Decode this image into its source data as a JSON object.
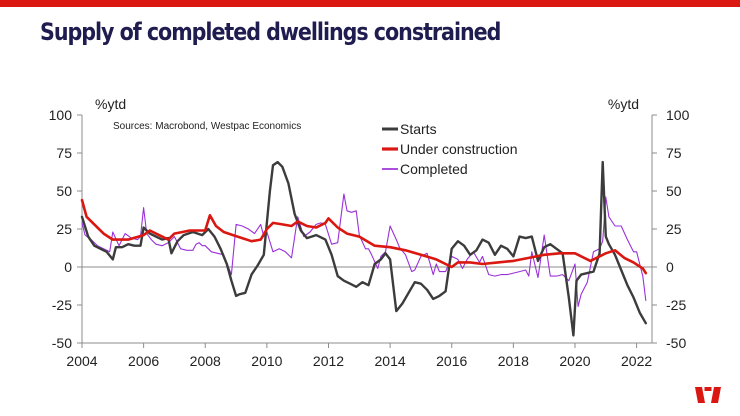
{
  "slide": {
    "title": "Supply of completed dwellings constrained",
    "accent_color": "#da1710",
    "title_color": "#1f1c4f",
    "logo_icon": "westpac-logo-icon"
  },
  "chart_data": {
    "type": "line",
    "title": "",
    "source_note": "Sources: Macrobond, Westpac Economics",
    "y_unit_left": "%ytd",
    "y_unit_right": "%ytd",
    "ylim": [
      -50,
      100
    ],
    "yticks": [
      100,
      75,
      50,
      25,
      0,
      -25,
      -50
    ],
    "xlim": [
      2004,
      2022.5
    ],
    "xticks": [
      2004,
      2006,
      2008,
      2010,
      2012,
      2014,
      2016,
      2018,
      2020,
      2022
    ],
    "grid": false,
    "legend_position": "top-center",
    "series": [
      {
        "name": "Starts",
        "color": "#3c3c3c",
        "x": [
          2004.0,
          2004.2,
          2004.4,
          2004.6,
          2004.8,
          2005.0,
          2005.1,
          2005.3,
          2005.5,
          2005.7,
          2005.9,
          2006.0,
          2006.2,
          2006.4,
          2006.6,
          2006.8,
          2006.9,
          2007.1,
          2007.3,
          2007.6,
          2007.9,
          2008.1,
          2008.3,
          2008.5,
          2008.7,
          2008.85,
          2009.0,
          2009.1,
          2009.3,
          2009.5,
          2009.7,
          2009.9,
          2010.1,
          2010.2,
          2010.35,
          2010.5,
          2010.7,
          2010.9,
          2011.1,
          2011.3,
          2011.6,
          2011.9,
          2012.1,
          2012.3,
          2012.5,
          2012.7,
          2012.9,
          2013.1,
          2013.3,
          2013.5,
          2013.7,
          2013.85,
          2014.0,
          2014.2,
          2014.4,
          2014.6,
          2014.8,
          2015.0,
          2015.2,
          2015.4,
          2015.6,
          2015.8,
          2016.0,
          2016.2,
          2016.4,
          2016.6,
          2016.8,
          2017.0,
          2017.2,
          2017.4,
          2017.6,
          2017.8,
          2018.0,
          2018.2,
          2018.4,
          2018.6,
          2018.8,
          2019.0,
          2019.2,
          2019.4,
          2019.6,
          2019.8,
          2019.95,
          2020.05,
          2020.2,
          2020.4,
          2020.6,
          2020.8,
          2020.9,
          2021.0,
          2021.1,
          2021.3,
          2021.5,
          2021.7,
          2021.9,
          2022.1,
          2022.3
        ],
        "values": [
          33,
          20,
          14,
          12,
          10,
          5,
          13,
          13,
          15,
          14,
          14,
          26,
          22,
          20,
          18,
          19,
          9,
          17,
          21,
          23,
          21,
          25,
          20,
          12,
          2,
          -9,
          -19,
          -18,
          -17,
          -5,
          1,
          8,
          50,
          67,
          69,
          66,
          55,
          35,
          24,
          19,
          21,
          18,
          8,
          -6,
          -9,
          -11,
          -13,
          -10,
          -12,
          2,
          5,
          9,
          5,
          -29,
          -24,
          -17,
          -10,
          -11,
          -15,
          -21,
          -19,
          -16,
          12,
          17,
          14,
          8,
          11,
          18,
          16,
          8,
          14,
          12,
          7,
          20,
          19,
          20,
          4,
          13,
          15,
          12,
          9,
          -20,
          -45,
          -9,
          -5,
          -4,
          -3,
          9,
          69,
          20,
          15,
          8,
          -2,
          -12,
          -20,
          -30,
          -37
        ]
      },
      {
        "name": "Under construction",
        "color": "#da1710",
        "x": [
          2004.0,
          2004.15,
          2004.4,
          2004.7,
          2005.0,
          2005.5,
          2006.0,
          2006.2,
          2006.5,
          2006.8,
          2007.0,
          2007.5,
          2008.0,
          2008.15,
          2008.35,
          2008.6,
          2008.9,
          2009.2,
          2009.5,
          2009.8,
          2010.0,
          2010.2,
          2010.5,
          2010.8,
          2011.0,
          2011.3,
          2011.6,
          2011.9,
          2012.0,
          2012.3,
          2012.6,
          2013.0,
          2013.5,
          2014.0,
          2014.5,
          2015.0,
          2015.5,
          2016.0,
          2016.2,
          2016.6,
          2017.0,
          2017.5,
          2018.0,
          2018.5,
          2019.0,
          2019.5,
          2020.0,
          2020.5,
          2021.0,
          2021.3,
          2021.6,
          2021.9,
          2022.2,
          2022.3
        ],
        "values": [
          44,
          33,
          28,
          22,
          18,
          18,
          21,
          24,
          21,
          18,
          22,
          24,
          24,
          34,
          27,
          23,
          21,
          19,
          17,
          18,
          25,
          29,
          28,
          27,
          30,
          27,
          26,
          29,
          32,
          26,
          22,
          20,
          14,
          13,
          11,
          8,
          5,
          0,
          3,
          3,
          2,
          3,
          4,
          6,
          8,
          9,
          9,
          4,
          9,
          11,
          6,
          3,
          -1,
          -4
        ]
      },
      {
        "name": "Completed",
        "color": "#9b30d9",
        "x": [
          2004.0,
          2004.1,
          2004.3,
          2004.5,
          2004.7,
          2004.9,
          2005.0,
          2005.2,
          2005.4,
          2005.6,
          2005.8,
          2005.9,
          2006.0,
          2006.1,
          2006.25,
          2006.4,
          2006.6,
          2006.8,
          2006.9,
          2007.0,
          2007.2,
          2007.4,
          2007.6,
          2007.7,
          2007.8,
          2007.9,
          2008.0,
          2008.2,
          2008.4,
          2008.6,
          2008.75,
          2008.85,
          2009.0,
          2009.2,
          2009.4,
          2009.6,
          2009.8,
          2009.9,
          2010.0,
          2010.2,
          2010.4,
          2010.6,
          2010.8,
          2011.0,
          2011.2,
          2011.4,
          2011.6,
          2011.75,
          2011.9,
          2012.1,
          2012.3,
          2012.5,
          2012.6,
          2012.75,
          2012.9,
          2013.0,
          2013.2,
          2013.3,
          2013.4,
          2013.6,
          2013.7,
          2013.85,
          2014.0,
          2014.2,
          2014.3,
          2014.5,
          2014.7,
          2014.8,
          2015.0,
          2015.2,
          2015.4,
          2015.5,
          2015.6,
          2015.8,
          2016.0,
          2016.2,
          2016.35,
          2016.5,
          2016.7,
          2016.9,
          2017.0,
          2017.2,
          2017.4,
          2017.6,
          2017.8,
          2018.0,
          2018.2,
          2018.4,
          2018.5,
          2018.6,
          2018.8,
          2018.9,
          2019.0,
          2019.2,
          2019.4,
          2019.6,
          2019.8,
          2020.0,
          2020.1,
          2020.2,
          2020.4,
          2020.6,
          2020.8,
          2020.9,
          2021.0,
          2021.1,
          2021.3,
          2021.5,
          2021.7,
          2021.9,
          2022.0,
          2022.2,
          2022.3
        ],
        "values": [
          29,
          21,
          18,
          14,
          12,
          10,
          23,
          14,
          22,
          19,
          18,
          20,
          39,
          22,
          18,
          15,
          14,
          16,
          18,
          20,
          12,
          11,
          11,
          15,
          16,
          14,
          14,
          10,
          9,
          8,
          0,
          -5,
          28,
          27,
          25,
          22,
          28,
          20,
          23,
          10,
          12,
          10,
          6,
          33,
          20,
          23,
          28,
          29,
          28,
          15,
          16,
          48,
          37,
          36,
          37,
          21,
          12,
          12,
          8,
          -1,
          7,
          10,
          27,
          18,
          13,
          8,
          -3,
          -2,
          7,
          9,
          -5,
          2,
          -3,
          -3,
          7,
          5,
          -1,
          5,
          10,
          3,
          7,
          -5,
          -6,
          -5,
          -5,
          -4,
          -3,
          -2,
          -6,
          10,
          -7,
          7,
          21,
          -6,
          -6,
          -5,
          -9,
          2,
          -26,
          -18,
          -10,
          10,
          12,
          17,
          46,
          33,
          27,
          27,
          18,
          10,
          10,
          -6,
          -22
        ]
      }
    ]
  }
}
